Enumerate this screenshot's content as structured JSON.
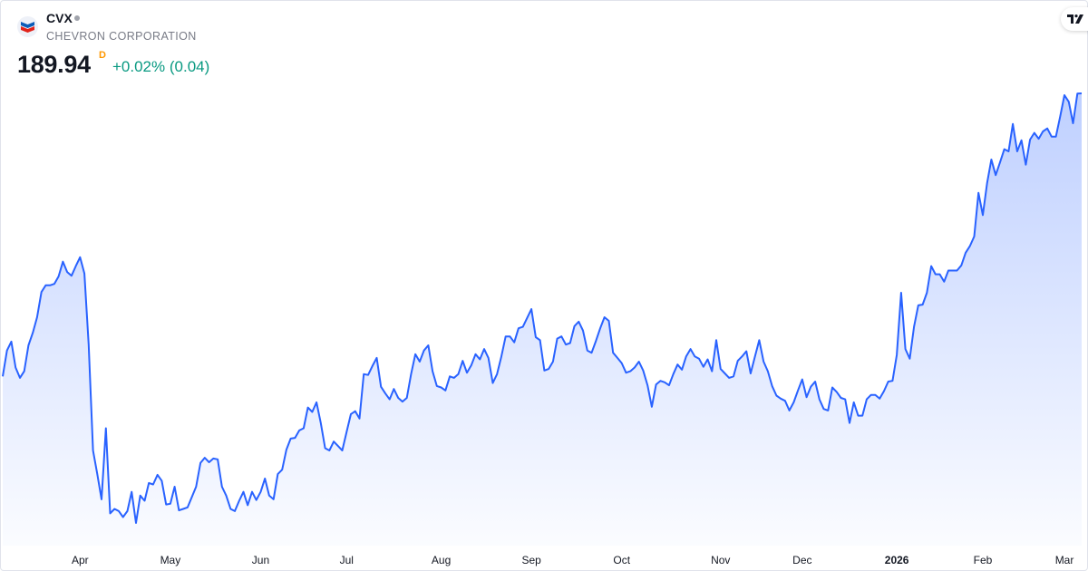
{
  "header": {
    "ticker": "CVX",
    "company": "CHEVRON CORPORATION",
    "price": "189.94",
    "interval": "D",
    "change": "+0.02% (0.04)",
    "logo_icon": "chevron-logo-icon",
    "brand_icon": "tradingview-logo-icon"
  },
  "colors": {
    "line": "#2962ff",
    "change_positive": "#089981",
    "interval_badge": "#ff9800",
    "text": "#131722",
    "muted": "#787b86"
  },
  "chart_data": {
    "type": "area",
    "title": "",
    "xlabel": "",
    "ylabel": "",
    "grid": false,
    "legend": "none",
    "y_axis_visible": false,
    "x_ticks": [
      {
        "label": "Apr",
        "bar": 18,
        "bold": false
      },
      {
        "label": "May",
        "bar": 39,
        "bold": false
      },
      {
        "label": "Jun",
        "bar": 60,
        "bold": false
      },
      {
        "label": "Jul",
        "bar": 80,
        "bold": false
      },
      {
        "label": "Aug",
        "bar": 102,
        "bold": false
      },
      {
        "label": "Sep",
        "bar": 123,
        "bold": false
      },
      {
        "label": "Oct",
        "bar": 144,
        "bold": false
      },
      {
        "label": "Nov",
        "bar": 167,
        "bold": false
      },
      {
        "label": "Dec",
        "bar": 186,
        "bold": false
      },
      {
        "label": "2026",
        "bar": 208,
        "bold": true
      },
      {
        "label": "Feb",
        "bar": 228,
        "bold": false
      },
      {
        "label": "Mar",
        "bar": 247,
        "bold": false
      }
    ],
    "values": [
      151.7,
      155.2,
      156.4,
      152.9,
      151.5,
      152.4,
      155.9,
      157.6,
      159.7,
      163.1,
      164.0,
      164.0,
      164.2,
      165.2,
      167.2,
      165.8,
      165.3,
      166.6,
      167.8,
      165.6,
      156.0,
      141.7,
      138.5,
      135.1,
      144.7,
      133.2,
      133.8,
      133.5,
      132.7,
      133.5,
      136.1,
      131.9,
      135.6,
      134.9,
      137.3,
      137.1,
      138.4,
      137.6,
      134.4,
      134.5,
      136.8,
      133.6,
      133.8,
      134.0,
      135.4,
      136.8,
      140.0,
      140.7,
      140.1,
      140.6,
      140.5,
      136.8,
      135.6,
      133.8,
      133.5,
      134.9,
      136.1,
      134.3,
      136.1,
      135.0,
      136.1,
      137.9,
      135.6,
      135.1,
      138.5,
      139.1,
      141.8,
      143.3,
      143.4,
      144.4,
      144.7,
      147.5,
      146.9,
      148.2,
      145.4,
      142.0,
      141.7,
      142.9,
      142.3,
      141.7,
      144.2,
      146.6,
      147.0,
      146.0,
      152.0,
      151.9,
      153.1,
      154.2,
      150.3,
      149.4,
      148.6,
      150.0,
      148.8,
      148.3,
      148.8,
      152.0,
      154.7,
      153.7,
      155.2,
      155.9,
      152.4,
      150.4,
      150.2,
      149.8,
      151.7,
      151.5,
      152.0,
      153.8,
      152.2,
      153.2,
      154.7,
      154.0,
      155.4,
      154.2,
      150.8,
      152.0,
      154.4,
      157.1,
      157.1,
      156.3,
      158.2,
      158.4,
      159.6,
      160.8,
      157.0,
      156.6,
      152.5,
      152.7,
      153.7,
      156.8,
      157.1,
      156.0,
      156.2,
      158.5,
      159.1,
      157.9,
      155.2,
      154.9,
      156.5,
      158.2,
      159.7,
      159.2,
      154.9,
      154.2,
      153.5,
      152.2,
      152.4,
      152.9,
      153.7,
      152.5,
      150.5,
      147.6,
      150.6,
      151.1,
      150.9,
      150.5,
      152.0,
      153.3,
      152.6,
      154.4,
      155.4,
      154.4,
      154.1,
      153.0,
      154.0,
      152.4,
      156.6,
      152.7,
      152.1,
      151.5,
      151.7,
      153.8,
      154.4,
      155.1,
      152.1,
      154.4,
      156.6,
      153.7,
      152.4,
      150.4,
      149.1,
      148.7,
      148.4,
      147.1,
      148.2,
      149.8,
      151.3,
      148.9,
      150.3,
      151.0,
      148.6,
      147.3,
      147.1,
      150.2,
      149.6,
      148.8,
      148.6,
      145.4,
      148.2,
      146.4,
      146.4,
      148.6,
      149.2,
      149.2,
      148.7,
      149.7,
      151.0,
      151.1,
      154.6,
      163.0,
      155.4,
      154.1,
      158.4,
      161.3,
      161.4,
      163.0,
      166.6,
      165.5,
      165.5,
      164.5,
      166.0,
      166.0,
      166.0,
      166.7,
      168.4,
      169.3,
      170.6,
      176.5,
      173.5,
      177.8,
      181.0,
      178.9,
      180.6,
      182.4,
      182.1,
      185.8,
      182.1,
      183.6,
      180.3,
      183.7,
      184.6,
      183.8,
      184.8,
      185.2,
      184.1,
      184.1,
      186.8,
      189.7,
      188.8,
      185.9,
      189.9,
      189.94
    ]
  }
}
